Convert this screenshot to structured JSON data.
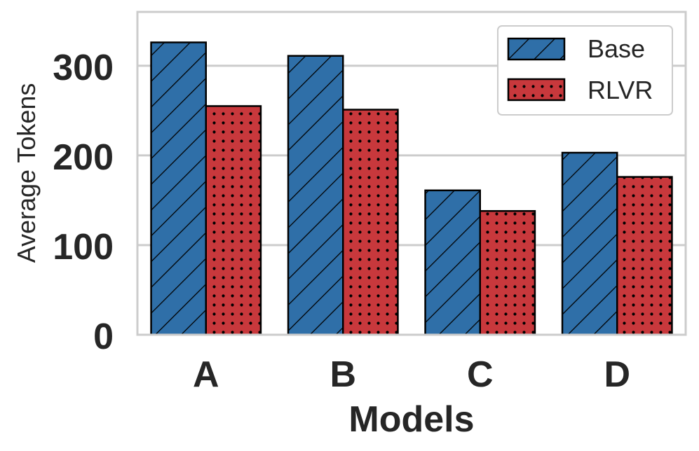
{
  "chart_data": {
    "type": "bar",
    "title": "",
    "xlabel": "Models",
    "ylabel": "Average Tokens",
    "categories": [
      "A",
      "B",
      "C",
      "D"
    ],
    "ylim": [
      0,
      360
    ],
    "yticks": [
      0,
      100,
      200,
      300
    ],
    "grid": true,
    "legend_position": "top-right",
    "series": [
      {
        "name": "Base",
        "values": [
          326,
          311,
          161,
          203
        ],
        "color": "#2f6fa8",
        "pattern": "diagonal-hatch"
      },
      {
        "name": "RLVR",
        "values": [
          255,
          251,
          138,
          176
        ],
        "color": "#c8383c",
        "pattern": "dots"
      }
    ]
  }
}
